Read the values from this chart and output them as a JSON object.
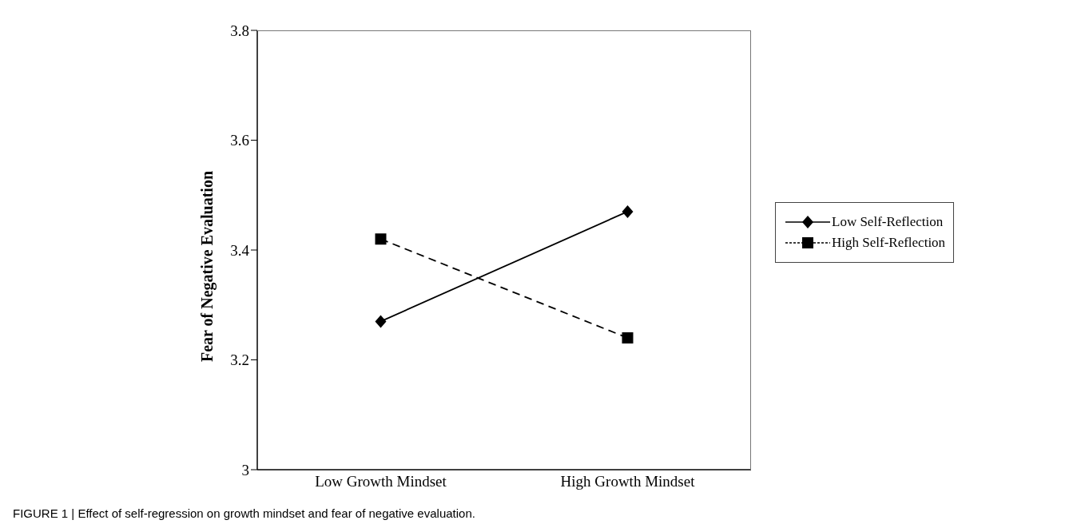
{
  "chart_data": {
    "type": "line",
    "ylabel": "Fear of Negative Evaluation",
    "categories": [
      "Low Growth Mindset",
      "High Growth Mindset"
    ],
    "series": [
      {
        "name": "Low Self-Reflection",
        "color": "#000000",
        "values": [
          3.27,
          3.47
        ],
        "marker": "diamond",
        "line_style": "solid"
      },
      {
        "name": "High Self-Reflection",
        "color": "#000000",
        "values": [
          3.42,
          3.24
        ],
        "marker": "square",
        "line_style": "dashed"
      }
    ],
    "ylim": [
      3,
      3.8
    ],
    "yticks": [
      3,
      3.2,
      3.4,
      3.6,
      3.8
    ],
    "grid": false,
    "legend": "right",
    "annotations": [
      "FIGURE 1 | Effect of self-regression on growth mindset and fear of negative evaluation."
    ]
  }
}
